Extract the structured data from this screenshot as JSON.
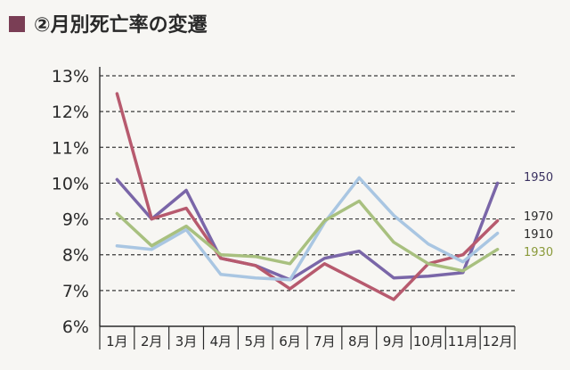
{
  "heading": {
    "text": "②月別死亡率の変遷",
    "square_color": "#7a3e55",
    "text_color": "#2a2a2a"
  },
  "chart_data": {
    "type": "line",
    "title": "②月別死亡率の変遷",
    "xlabel": "",
    "ylabel": "",
    "categories": [
      "1月",
      "2月",
      "3月",
      "4月",
      "5月",
      "6月",
      "7月",
      "8月",
      "9月",
      "10月",
      "11月",
      "12月"
    ],
    "y_ticks": [
      "6%",
      "7%",
      "8%",
      "9%",
      "10%",
      "11%",
      "12%",
      "13%"
    ],
    "ylim": [
      6,
      13
    ],
    "grid": "horizontal dashed",
    "legend": "series labels at right end of lines",
    "series": [
      {
        "name": "1950",
        "color": "#7a66a8",
        "label_color": "#3a3160",
        "values": [
          10.1,
          9.0,
          9.8,
          7.9,
          7.7,
          7.3,
          7.9,
          8.1,
          7.35,
          7.4,
          7.5,
          10.0
        ]
      },
      {
        "name": "1970",
        "color": "#b75a6e",
        "label_color": "#2a2a2a",
        "values": [
          12.5,
          9.0,
          9.3,
          7.9,
          7.7,
          7.05,
          7.75,
          7.25,
          6.75,
          7.75,
          8.0,
          8.95
        ]
      },
      {
        "name": "1910",
        "color": "#a9c6e2",
        "label_color": "#2a2a2a",
        "values": [
          8.25,
          8.15,
          8.7,
          7.45,
          7.35,
          7.3,
          8.9,
          10.15,
          9.1,
          8.3,
          7.8,
          8.6
        ]
      },
      {
        "name": "1930",
        "color": "#a8c07f",
        "label_color": "#8a9a3a",
        "values": [
          9.15,
          8.25,
          8.8,
          8.0,
          7.95,
          7.75,
          8.95,
          9.5,
          8.35,
          7.75,
          7.55,
          8.15
        ]
      }
    ]
  }
}
